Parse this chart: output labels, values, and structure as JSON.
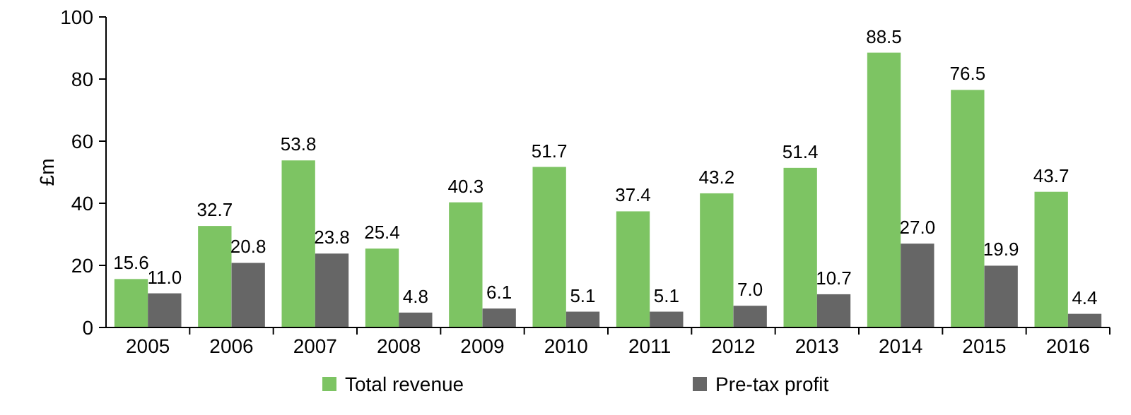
{
  "chart_data": {
    "type": "bar",
    "ylabel": "£m",
    "categories": [
      "2005",
      "2006",
      "2007",
      "2008",
      "2009",
      "2010",
      "2011",
      "2012",
      "2013",
      "2014",
      "2015",
      "2016"
    ],
    "series": [
      {
        "name": "Total revenue",
        "color": "#7dc463",
        "values": [
          15.6,
          32.7,
          53.8,
          25.4,
          40.3,
          51.7,
          37.4,
          43.2,
          51.4,
          88.5,
          76.5,
          43.7
        ],
        "value_labels": [
          "15.6",
          "32.7",
          "53.8",
          "25.4",
          "40.3",
          "51.7",
          "37.4",
          "43.2",
          "51.4",
          "88.5",
          "76.5",
          "43.7"
        ]
      },
      {
        "name": "Pre-tax profit",
        "color": "#666666",
        "values": [
          11,
          20.8,
          23.8,
          4.8,
          6.1,
          5.1,
          5.1,
          7,
          10.7,
          27,
          19.9,
          4.4
        ],
        "value_labels": [
          "11.0",
          "20.8",
          "23.8",
          "4.8",
          "6.1",
          "5.1",
          "5.1",
          "7.0",
          "10.7",
          "27.0",
          "19.9",
          "4.4"
        ]
      }
    ],
    "ylim": [
      0,
      100
    ],
    "yticks": [
      0,
      20,
      40,
      60,
      80,
      100
    ],
    "legend": "bottom",
    "grid": false
  }
}
